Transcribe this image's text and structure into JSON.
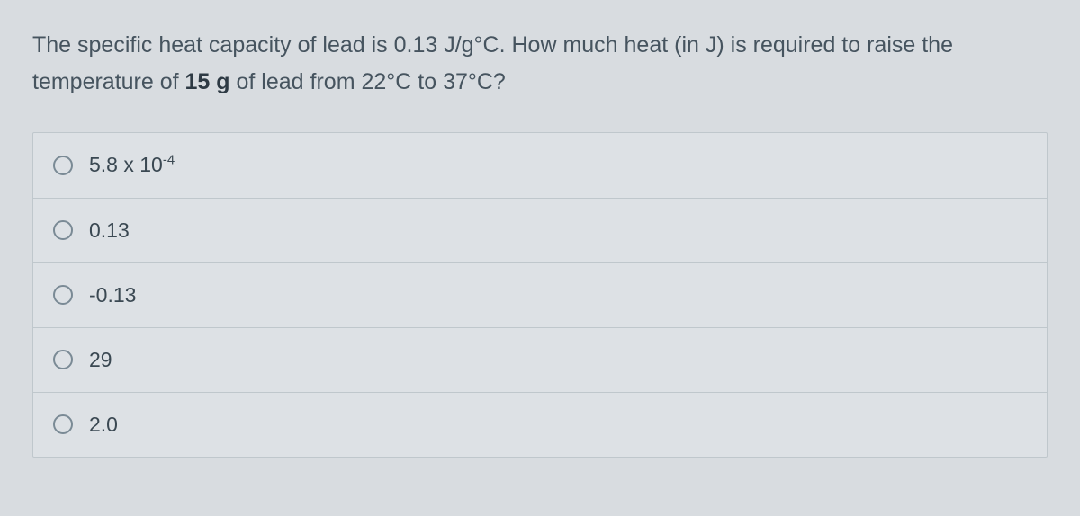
{
  "question": {
    "pre": "The specific heat capacity of lead is 0.13 J/g°C. How much heat (in J) is required to raise the temperature of ",
    "bold": "15 g",
    "post": " of lead from 22°C to 37°C?"
  },
  "options": [
    {
      "html": "5.8 x 10<sup>-4</sup>"
    },
    {
      "html": "0.13"
    },
    {
      "html": "-0.13"
    },
    {
      "html": "29"
    },
    {
      "html": "2.0"
    }
  ],
  "colors": {
    "background": "#d8dce0",
    "text": "#3a4a56",
    "border": "#bfc7cc",
    "radio_border": "#7a8a95"
  }
}
